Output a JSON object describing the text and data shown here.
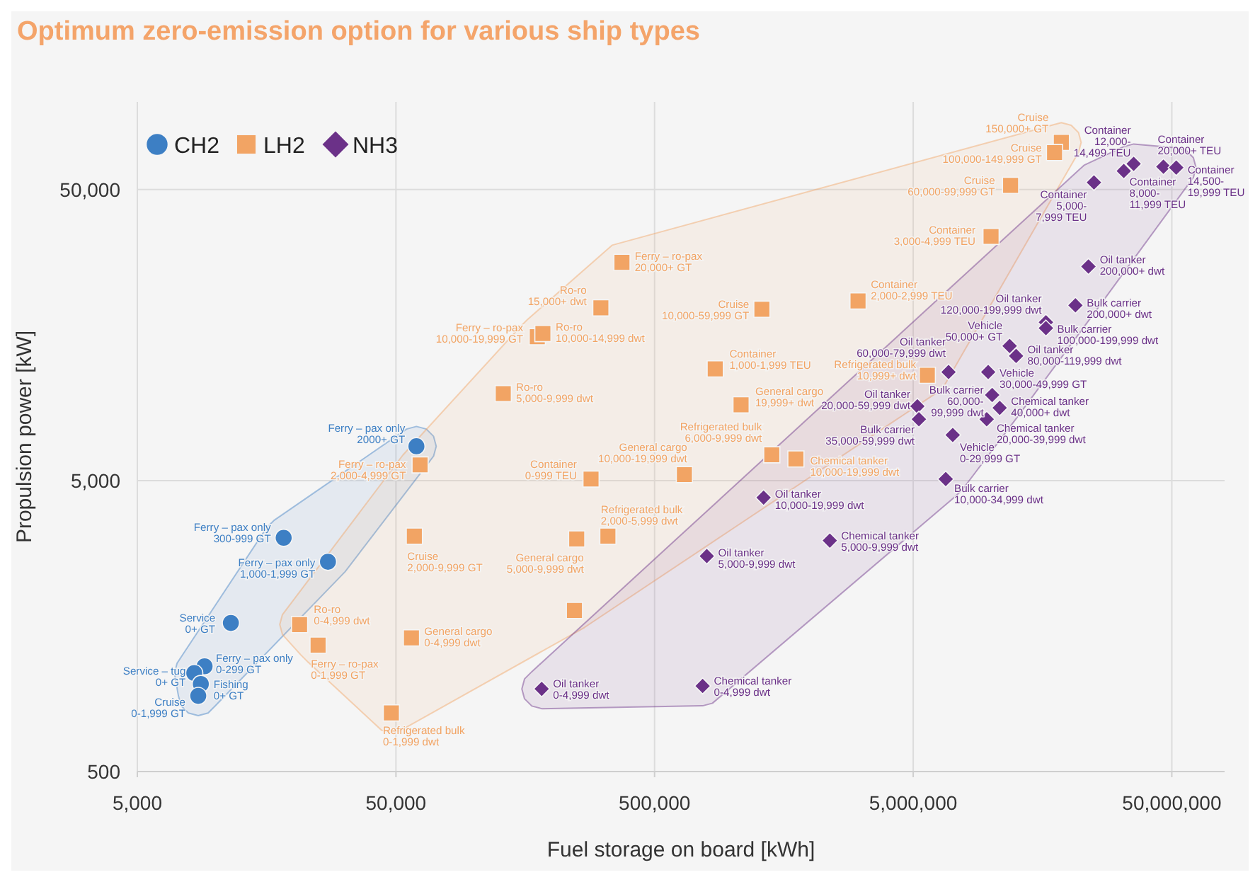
{
  "chart_data": {
    "type": "scatter",
    "title": "Optimum zero-emission option for various ship types",
    "xlabel": "Fuel storage on board [kWh]",
    "ylabel": "Propulsion power [kW]",
    "log": "xy",
    "grid": true,
    "legend": "top left",
    "xlim": [
      5000,
      80000000
    ],
    "ylim": [
      500,
      100000
    ],
    "xticks": [
      {
        "value": 5000,
        "label": "5,000"
      },
      {
        "value": 50000,
        "label": "50,000"
      },
      {
        "value": 500000,
        "label": "500,000"
      },
      {
        "value": 5000000,
        "label": "5,000,000"
      },
      {
        "value": 50000000,
        "label": "50,000,000"
      }
    ],
    "yticks": [
      {
        "value": 500,
        "label": "500"
      },
      {
        "value": 5000,
        "label": "5,000"
      },
      {
        "value": 50000,
        "label": "50,000"
      }
    ],
    "series": [
      {
        "name": "CH2",
        "color": "#3d7fc4",
        "marker": "circle",
        "x": [
          60000,
          18400,
          27300,
          11500,
          9100,
          8300,
          8800,
          8600
        ],
        "values": [
          6560,
          3180,
          2630,
          1620,
          1150,
          1090,
          1000,
          910
        ]
      },
      {
        "name": "LH2",
        "color": "#f2a464",
        "marker": "square",
        "x": [
          62000,
          58900,
          21200,
          25000,
          57400,
          48000,
          374000,
          310000,
          176000,
          185000,
          1300000,
          3060000,
          858000,
          130000,
          1080000,
          1420000,
          1760000,
          652000,
          284000,
          330000,
          250000,
          245000,
          18700000,
          17600000,
          11900000,
          10000000,
          5670000
        ],
        "values": [
          5660,
          3220,
          1600,
          1360,
          1440,
          795,
          28100,
          19600,
          15600,
          16000,
          19400,
          20700,
          12100,
          9950,
          9100,
          6130,
          5930,
          5240,
          5060,
          3220,
          3150,
          1790,
          72600,
          67000,
          51700,
          34500,
          11500
        ]
      },
      {
        "name": "NH3",
        "color": "#6b3188",
        "marker": "diamond",
        "x": [
          35600000,
          32600000,
          25000000,
          46400000,
          52000000,
          23800000,
          21200000,
          16300000,
          16300000,
          11800000,
          12500000,
          6850000,
          9750000,
          10100000,
          10800000,
          9620000,
          5190000,
          5260000,
          7110000,
          6680000,
          1320000,
          2380000,
          796000,
          183000,
          767000
        ],
        "values": [
          61300,
          57900,
          52900,
          59900,
          59500,
          27200,
          20000,
          17500,
          16700,
          14500,
          13400,
          11800,
          11800,
          9840,
          8890,
          8120,
          9000,
          8120,
          7170,
          5060,
          4370,
          3110,
          2750,
          962,
          984
        ]
      }
    ],
    "annotations": [
      {
        "text": "Ferry – pax only\n2000+ GT",
        "x": 60000,
        "y": 6560
      },
      {
        "text": "Ferry – pax only\n300-999 GT",
        "x": 18400,
        "y": 3180
      },
      {
        "text": "Ferry – pax only\n1,000-1,999 GT",
        "x": 27300,
        "y": 2630
      },
      {
        "text": "Service\n0+ GT",
        "x": 11500,
        "y": 1620
      },
      {
        "text": "Ferry – pax only\n0-299 GT",
        "x": 9100,
        "y": 1150
      },
      {
        "text": "Service – tug\n0+ GT",
        "x": 8300,
        "y": 1090
      },
      {
        "text": "Fishing\n0+ GT",
        "x": 8800,
        "y": 1000
      },
      {
        "text": "Cruise\n0-1,999 GT",
        "x": 8600,
        "y": 910
      },
      {
        "text": "Ferry – ro-pax\n2,000-4,999 GT",
        "x": 62000,
        "y": 5660
      },
      {
        "text": "Cruise\n2,000-9,999 GT",
        "x": 58900,
        "y": 3220
      },
      {
        "text": "Ro-ro\n0-4,999 dwt",
        "x": 21200,
        "y": 1600
      },
      {
        "text": "Ferry – ro-pax\n0-1,999 GT",
        "x": 25000,
        "y": 1360
      },
      {
        "text": "General cargo\n0-4,999 dwt",
        "x": 57400,
        "y": 1440
      },
      {
        "text": "Refrigerated bulk\n0-1,999 dwt",
        "x": 48000,
        "y": 795
      },
      {
        "text": "Ferry – ro-pax\n20,000+ GT",
        "x": 374000,
        "y": 28100
      },
      {
        "text": "Ro-ro\n15,000+ dwt",
        "x": 310000,
        "y": 19600
      },
      {
        "text": "Ferry – ro-pax\n10,000-19,999 GT",
        "x": 176000,
        "y": 15600
      },
      {
        "text": "Ro-ro\n10,000-14,999 dwt",
        "x": 185000,
        "y": 16000
      },
      {
        "text": "Cruise\n10,000-59,999 GT",
        "x": 1300000,
        "y": 19400
      },
      {
        "text": "Container\n2,000-2,999 TEU",
        "x": 3060000,
        "y": 20700
      },
      {
        "text": "Container\n1,000-1,999 TEU",
        "x": 858000,
        "y": 12100
      },
      {
        "text": "Ro-ro\n5,000-9,999 dwt",
        "x": 130000,
        "y": 9950
      },
      {
        "text": "General cargo\n19,999+ dwt",
        "x": 1080000,
        "y": 9100
      },
      {
        "text": "Refrigerated bulk\n6,000-9,999 dwt",
        "x": 1420000,
        "y": 6130
      },
      {
        "text": "Chemical tanker\n10,000-19,999 dwt",
        "x": 1760000,
        "y": 5930
      },
      {
        "text": "General cargo\n10,000-19,999 dwt",
        "x": 652000,
        "y": 5240
      },
      {
        "text": "Container\n0-999 TEU",
        "x": 284000,
        "y": 5060
      },
      {
        "text": "Refrigerated bulk\n2,000-5,999 dwt",
        "x": 330000,
        "y": 3220
      },
      {
        "text": "General cargo\n5,000-9,999 dwt",
        "x": 250000,
        "y": 3150
      },
      {
        "text": "Cruise\n150,000+ GT",
        "x": 18700000,
        "y": 72600
      },
      {
        "text": "Cruise\n100,000-149,999 GT",
        "x": 17600000,
        "y": 67000
      },
      {
        "text": "Cruise\n60,000-99,999 GT",
        "x": 11900000,
        "y": 51700
      },
      {
        "text": "Container\n3,000-4,999 TEU",
        "x": 10000000,
        "y": 34500
      },
      {
        "text": "Refrigerated bulk\n10,999+ dwt",
        "x": 5670000,
        "y": 11500
      },
      {
        "text": "Container\n12,000-\n14,499 TEU",
        "x": 35600000,
        "y": 61300
      },
      {
        "text": "Container\n8,000-\n11,999 TEU",
        "x": 32600000,
        "y": 57900
      },
      {
        "text": "Container\n5,000-\n7,999 TEU",
        "x": 25000000,
        "y": 52900
      },
      {
        "text": "Container\n20,000+ TEU",
        "x": 46400000,
        "y": 59900
      },
      {
        "text": "Container\n14,500-\n19,999 TEU",
        "x": 52000000,
        "y": 59500
      },
      {
        "text": "Oil tanker\n200,000+ dwt",
        "x": 23800000,
        "y": 27200
      },
      {
        "text": "Bulk carrier\n200,000+ dwt",
        "x": 21200000,
        "y": 20000
      },
      {
        "text": "Oil tanker\n120,000-199,999 dwt",
        "x": 16300000,
        "y": 17500
      },
      {
        "text": "Bulk carrier\n100,000-199,999 dwt",
        "x": 16300000,
        "y": 16700
      },
      {
        "text": "Vehicle\n50,000+ GT",
        "x": 11800000,
        "y": 14500
      },
      {
        "text": "Oil tanker\n80,000-119,999 dwt",
        "x": 12500000,
        "y": 13400
      },
      {
        "text": "Oil tanker\n60,000-79,999 dwt",
        "x": 6850000,
        "y": 11800
      },
      {
        "text": "Vehicle\n30,000-49,999 GT",
        "x": 9750000,
        "y": 11800
      },
      {
        "text": "Bulk carrier\n60,000-\n99,999 dwt",
        "x": 10100000,
        "y": 9840
      },
      {
        "text": "Chemical tanker\n40,000+ dwt",
        "x": 10800000,
        "y": 8890
      },
      {
        "text": "Chemical tanker\n20,000-39,999 dwt",
        "x": 9620000,
        "y": 8120
      },
      {
        "text": "Oil tanker\n20,000-59,999 dwt",
        "x": 5190000,
        "y": 9000
      },
      {
        "text": "Bulk carrier\n35,000-59,999 dwt",
        "x": 5260000,
        "y": 8120
      },
      {
        "text": "Vehicle\n0-29,999 GT",
        "x": 7110000,
        "y": 7170
      },
      {
        "text": "Bulk carrier\n10,000-34,999 dwt",
        "x": 6680000,
        "y": 5060
      },
      {
        "text": "Oil tanker\n10,000-19,999 dwt",
        "x": 1320000,
        "y": 4370
      },
      {
        "text": "Chemical tanker\n5,000-9,999 dwt",
        "x": 2380000,
        "y": 3110
      },
      {
        "text": "Oil tanker\n5,000-9,999 dwt",
        "x": 796000,
        "y": 2750
      },
      {
        "text": "Oil tanker\n0-4,999 dwt",
        "x": 183000,
        "y": 962
      },
      {
        "text": "Chemical tanker\n0-4,999 dwt",
        "x": 767000,
        "y": 984
      }
    ]
  }
}
